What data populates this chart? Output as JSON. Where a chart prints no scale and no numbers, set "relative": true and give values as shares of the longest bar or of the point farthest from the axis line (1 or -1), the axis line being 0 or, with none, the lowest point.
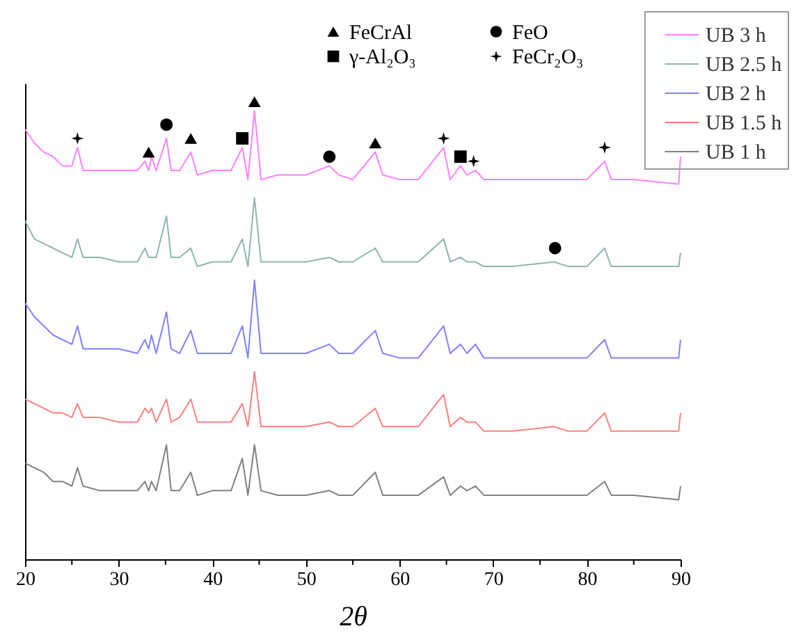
{
  "chart_data": {
    "type": "line",
    "relative": true,
    "xlabel": "2θ",
    "legend": "top right",
    "xlim": [
      20,
      90
    ],
    "xticks": [
      20,
      {
        "value": 25,
        "label": null
      },
      30,
      {
        "value": 35,
        "label": null
      },
      40,
      {
        "value": 45,
        "label": null
      },
      50,
      {
        "value": 55,
        "label": null
      },
      60,
      {
        "value": 65,
        "label": null
      },
      70,
      {
        "value": 75,
        "label": null
      },
      80,
      {
        "value": 85,
        "label": null
      },
      90
    ],
    "x": [
      20,
      21,
      22,
      23,
      24,
      25,
      25.6,
      26.2,
      28,
      30,
      32,
      32.8,
      33.2,
      33.5,
      34,
      35.1,
      35.6,
      36.5,
      37.7,
      38.4,
      40,
      42,
      43.2,
      43.8,
      44.5,
      45.2,
      47,
      50,
      52.5,
      53.5,
      55,
      57.4,
      58.2,
      60,
      62,
      64.7,
      65.4,
      66.5,
      67.2,
      68.1,
      69,
      72,
      76.5,
      78,
      80,
      81.9,
      82.6,
      85,
      89.8,
      90
    ],
    "series": [
      {
        "name": "UB 3 h",
        "color": "#ff80ff",
        "values": [
          0.94,
          0.91,
          0.89,
          0.88,
          0.86,
          0.86,
          0.9,
          0.85,
          0.85,
          0.85,
          0.85,
          0.87,
          0.85,
          0.88,
          0.85,
          0.92,
          0.85,
          0.85,
          0.89,
          0.84,
          0.85,
          0.85,
          0.9,
          0.83,
          0.98,
          0.83,
          0.84,
          0.84,
          0.86,
          0.84,
          0.83,
          0.89,
          0.84,
          0.83,
          0.83,
          0.9,
          0.83,
          0.86,
          0.84,
          0.85,
          0.83,
          0.83,
          0.83,
          0.83,
          0.83,
          0.87,
          0.83,
          0.83,
          0.82,
          0.88
        ]
      },
      {
        "name": "UB 2.5 h",
        "color": "#8fb5b0",
        "values": [
          0.74,
          0.7,
          0.69,
          0.68,
          0.67,
          0.66,
          0.7,
          0.66,
          0.66,
          0.65,
          0.65,
          0.68,
          0.66,
          0.66,
          0.66,
          0.75,
          0.66,
          0.66,
          0.68,
          0.64,
          0.65,
          0.65,
          0.7,
          0.64,
          0.79,
          0.65,
          0.65,
          0.65,
          0.66,
          0.65,
          0.65,
          0.68,
          0.65,
          0.65,
          0.65,
          0.7,
          0.65,
          0.66,
          0.65,
          0.65,
          0.64,
          0.64,
          0.65,
          0.64,
          0.64,
          0.68,
          0.64,
          0.64,
          0.64,
          0.67
        ]
      },
      {
        "name": "UB 2 h",
        "color": "#8080ff",
        "values": [
          0.56,
          0.53,
          0.51,
          0.49,
          0.48,
          0.47,
          0.51,
          0.46,
          0.46,
          0.46,
          0.45,
          0.48,
          0.46,
          0.49,
          0.45,
          0.54,
          0.46,
          0.45,
          0.5,
          0.45,
          0.45,
          0.45,
          0.51,
          0.44,
          0.61,
          0.45,
          0.45,
          0.45,
          0.47,
          0.45,
          0.45,
          0.5,
          0.45,
          0.44,
          0.44,
          0.51,
          0.45,
          0.47,
          0.45,
          0.47,
          0.44,
          0.44,
          0.44,
          0.44,
          0.44,
          0.48,
          0.44,
          0.44,
          0.44,
          0.48
        ]
      },
      {
        "name": "UB 1.5 h",
        "color": "#ff8080",
        "values": [
          0.35,
          0.34,
          0.33,
          0.32,
          0.32,
          0.31,
          0.34,
          0.31,
          0.31,
          0.3,
          0.3,
          0.33,
          0.32,
          0.33,
          0.3,
          0.35,
          0.3,
          0.31,
          0.35,
          0.3,
          0.3,
          0.3,
          0.34,
          0.29,
          0.41,
          0.29,
          0.29,
          0.29,
          0.3,
          0.29,
          0.29,
          0.33,
          0.29,
          0.29,
          0.29,
          0.36,
          0.29,
          0.31,
          0.3,
          0.3,
          0.28,
          0.28,
          0.29,
          0.28,
          0.28,
          0.32,
          0.28,
          0.28,
          0.28,
          0.32
        ]
      },
      {
        "name": "UB 1 h",
        "color": "#808080",
        "values": [
          0.21,
          0.2,
          0.19,
          0.17,
          0.17,
          0.16,
          0.2,
          0.16,
          0.15,
          0.15,
          0.15,
          0.17,
          0.15,
          0.17,
          0.15,
          0.25,
          0.15,
          0.15,
          0.19,
          0.14,
          0.15,
          0.15,
          0.22,
          0.14,
          0.25,
          0.15,
          0.14,
          0.14,
          0.15,
          0.14,
          0.14,
          0.19,
          0.14,
          0.14,
          0.14,
          0.18,
          0.14,
          0.16,
          0.15,
          0.16,
          0.14,
          0.14,
          0.14,
          0.14,
          0.14,
          0.17,
          0.14,
          0.14,
          0.13,
          0.16
        ]
      },
      {
        "name": "FeCrAl",
        "type": "scatter",
        "marker": "triangle",
        "color": "#000000",
        "x": [
          33.2,
          37.7,
          44.5,
          57.4
        ],
        "values": [
          0.89,
          0.92,
          1,
          0.91
        ]
      },
      {
        "name": "γ-Al₂O₃",
        "type": "scatter",
        "marker": "square",
        "color": "#000000",
        "x": [
          43.2,
          66.5
        ],
        "values": [
          0.92,
          0.88
        ]
      },
      {
        "name": "FeO",
        "type": "scatter",
        "marker": "circle",
        "color": "#000000",
        "x": [
          35.1,
          52.5,
          76.6
        ],
        "values": [
          0.95,
          0.88,
          0.68
        ]
      },
      {
        "name": "FeCr₂O₃",
        "type": "scatter",
        "marker": "star",
        "color": "#000000",
        "x": [
          25.6,
          64.7,
          67.9,
          81.9
        ],
        "values": [
          0.92,
          0.92,
          0.87,
          0.9
        ]
      }
    ]
  }
}
